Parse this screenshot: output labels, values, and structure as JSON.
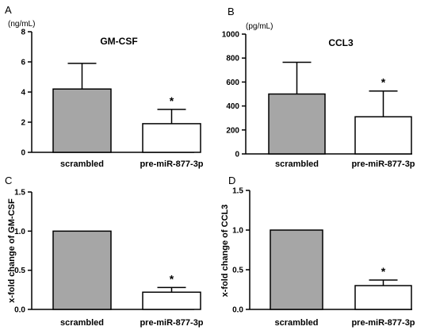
{
  "chart_data": [
    {
      "panel": "A",
      "type": "bar",
      "title": "GM-CSF",
      "unit_label": "(ng/mL)",
      "ylabel": "",
      "categories": [
        "scrambled",
        "pre-miR-877-3p"
      ],
      "values": [
        4.2,
        1.9
      ],
      "errors": [
        1.7,
        0.95
      ],
      "significance": [
        "",
        "*"
      ],
      "ylim": [
        0,
        8
      ],
      "yticks": [
        "0",
        "2",
        "4",
        "6",
        "8"
      ],
      "bar_colors": [
        "#a6a6a6",
        "#ffffff"
      ]
    },
    {
      "panel": "B",
      "type": "bar",
      "title": "CCL3",
      "unit_label": "(pg/mL)",
      "ylabel": "",
      "categories": [
        "scrambled",
        "pre-miR-877-3p"
      ],
      "values": [
        500,
        310
      ],
      "errors": [
        265,
        215
      ],
      "significance": [
        "",
        "*"
      ],
      "ylim": [
        0,
        1000
      ],
      "yticks": [
        "0",
        "200",
        "400",
        "600",
        "800",
        "1000"
      ],
      "bar_colors": [
        "#a6a6a6",
        "#ffffff"
      ]
    },
    {
      "panel": "C",
      "type": "bar",
      "title": "",
      "unit_label": "",
      "ylabel": "x-fold change of GM-CSF",
      "categories": [
        "scrambled",
        "pre-miR-877-3p"
      ],
      "values": [
        1.0,
        0.22
      ],
      "errors": [
        0,
        0.06
      ],
      "significance": [
        "",
        "*"
      ],
      "ylim": [
        0,
        1.5
      ],
      "yticks": [
        "0.0",
        "0.5",
        "1.0",
        "1.5"
      ],
      "bar_colors": [
        "#a6a6a6",
        "#ffffff"
      ]
    },
    {
      "panel": "D",
      "type": "bar",
      "title": "",
      "unit_label": "",
      "ylabel": "x-fold change of CCL3",
      "categories": [
        "scrambled",
        "pre-miR-877-3p"
      ],
      "values": [
        1.0,
        0.3
      ],
      "errors": [
        0,
        0.07
      ],
      "significance": [
        "",
        "*"
      ],
      "ylim": [
        0,
        1.5
      ],
      "yticks": [
        "0.0",
        "0.5",
        "1.0",
        "1.5"
      ],
      "bar_colors": [
        "#a6a6a6",
        "#ffffff"
      ]
    }
  ]
}
